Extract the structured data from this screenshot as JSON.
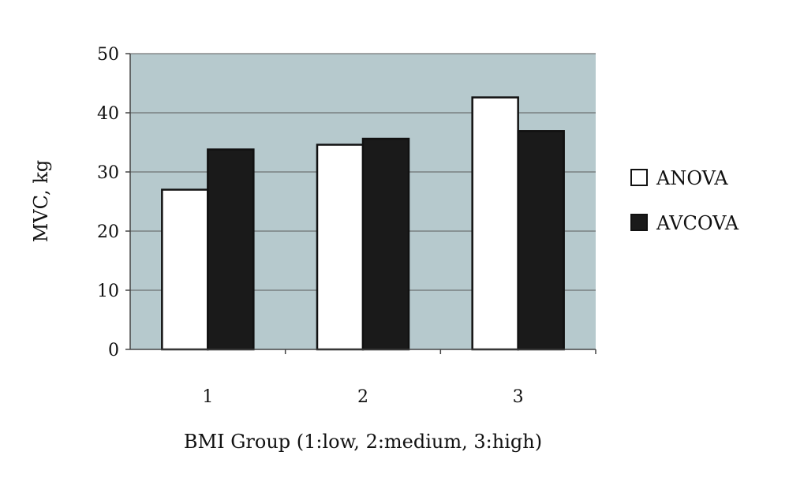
{
  "chart_data": {
    "type": "bar",
    "title": "",
    "xlabel": "BMI Group (1:low, 2:medium, 3:high)",
    "ylabel": "MVC, kg",
    "categories": [
      "1",
      "2",
      "3"
    ],
    "series": [
      {
        "name": "ANOVA",
        "values": [
          27,
          34.6,
          42.6
        ],
        "color": "#ffffff"
      },
      {
        "name": "AVCOVA",
        "values": [
          33.8,
          35.6,
          36.9
        ],
        "color": "#1a1a1a"
      }
    ],
    "ylim": [
      0,
      50
    ],
    "yticks": [
      "0",
      "10",
      "20",
      "30",
      "40",
      "50"
    ],
    "grid": true,
    "plot_background": "#b6c9cd",
    "legend_position": "right"
  }
}
